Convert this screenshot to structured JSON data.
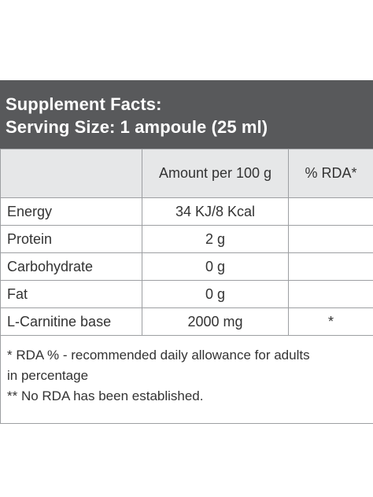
{
  "header": {
    "title": "Supplement Facts:",
    "serving_size": "Serving Size: 1 ampoule (25 ml)"
  },
  "table": {
    "columns": [
      "",
      "Amount per 100 g",
      "% RDA*"
    ],
    "rows": [
      {
        "name": "Energy",
        "amount": "34 KJ/8 Kcal",
        "rda": ""
      },
      {
        "name": "Protein",
        "amount": "2 g",
        "rda": ""
      },
      {
        "name": "Carbohydrate",
        "amount": "0 g",
        "rda": ""
      },
      {
        "name": "Fat",
        "amount": "0 g",
        "rda": ""
      },
      {
        "name": "L-Carnitine base",
        "amount": "2000 mg",
        "rda": "*"
      }
    ]
  },
  "footnotes": {
    "line1": "* RDA % - recommended daily allowance for adults",
    "line2": "in percentage",
    "line3": "** No RDA has been established."
  }
}
